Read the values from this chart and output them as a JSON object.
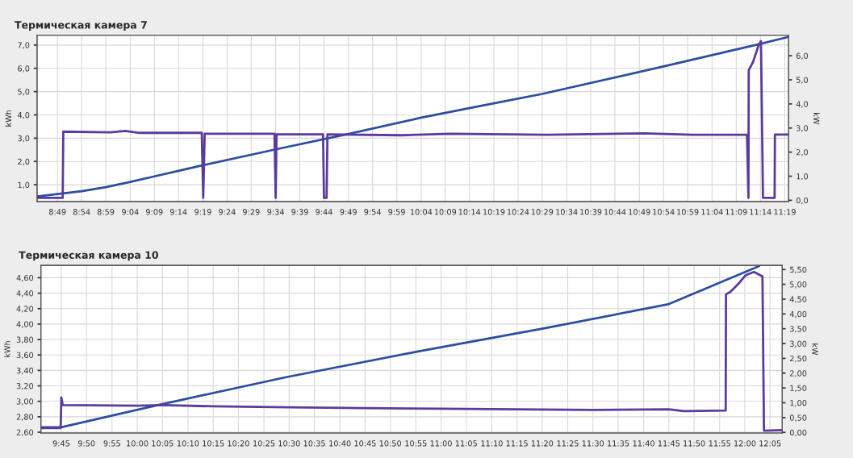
{
  "chart_data": [
    {
      "type": "line",
      "title": "Термическая камера 7",
      "ylabel": "kWh",
      "y2label": "kW",
      "grid": true,
      "legend": false,
      "marker": "none",
      "line_style": "solid",
      "xlim": [
        8.747,
        11.33
      ],
      "xticks": [
        {
          "value": 8.817,
          "label": "8:49"
        },
        {
          "value": 8.9,
          "label": "8:54"
        },
        {
          "value": 8.983,
          "label": "8:59"
        },
        {
          "value": 9.067,
          "label": "9:04"
        },
        {
          "value": 9.15,
          "label": "9:09"
        },
        {
          "value": 9.233,
          "label": "9:14"
        },
        {
          "value": 9.317,
          "label": "9:19"
        },
        {
          "value": 9.4,
          "label": "9:24"
        },
        {
          "value": 9.483,
          "label": "9:29"
        },
        {
          "value": 9.567,
          "label": "9:34"
        },
        {
          "value": 9.65,
          "label": "9:39"
        },
        {
          "value": 9.733,
          "label": "9:44"
        },
        {
          "value": 9.817,
          "label": "9:49"
        },
        {
          "value": 9.9,
          "label": "9:54"
        },
        {
          "value": 9.983,
          "label": "9:59"
        },
        {
          "value": 10.067,
          "label": "10:04"
        },
        {
          "value": 10.15,
          "label": "10:09"
        },
        {
          "value": 10.233,
          "label": "10:14"
        },
        {
          "value": 10.317,
          "label": "10:19"
        },
        {
          "value": 10.4,
          "label": "10:24"
        },
        {
          "value": 10.483,
          "label": "10:29"
        },
        {
          "value": 10.567,
          "label": "10:34"
        },
        {
          "value": 10.65,
          "label": "10:39"
        },
        {
          "value": 10.733,
          "label": "10:44"
        },
        {
          "value": 10.817,
          "label": "10:49"
        },
        {
          "value": 10.9,
          "label": "10:54"
        },
        {
          "value": 10.983,
          "label": "10:59"
        },
        {
          "value": 11.067,
          "label": "11:04"
        },
        {
          "value": 11.15,
          "label": "11:09"
        },
        {
          "value": 11.233,
          "label": "11:14"
        },
        {
          "value": 11.317,
          "label": "11:19"
        }
      ],
      "ylim": [
        0.28,
        7.42
      ],
      "yticks": [
        {
          "value": 1,
          "label": "1,0"
        },
        {
          "value": 2,
          "label": "2,0"
        },
        {
          "value": 3,
          "label": "3,0"
        },
        {
          "value": 4,
          "label": "4,0"
        },
        {
          "value": 5,
          "label": "5,0"
        },
        {
          "value": 6,
          "label": "6,0"
        },
        {
          "value": 7,
          "label": "7,0"
        }
      ],
      "y2lim": [
        -0.05,
        6.85
      ],
      "y2ticks": [
        {
          "value": 0,
          "label": "0,0"
        },
        {
          "value": 1,
          "label": "1,0"
        },
        {
          "value": 2,
          "label": "2,0"
        },
        {
          "value": 3,
          "label": "3,0"
        },
        {
          "value": 4,
          "label": "4,0"
        },
        {
          "value": 5,
          "label": "5,0"
        },
        {
          "value": 6,
          "label": "6,0"
        }
      ],
      "series": [
        {
          "color": "#2b4ea2",
          "x": [
            8.747,
            8.9,
            8.983,
            9.067,
            9.15,
            9.233,
            9.317,
            9.567,
            9.817,
            10.067,
            10.317,
            10.483,
            10.9,
            11.233,
            11.33
          ],
          "values": [
            0.5,
            0.72,
            0.9,
            1.12,
            1.36,
            1.6,
            1.84,
            2.52,
            3.18,
            3.88,
            4.5,
            4.9,
            6.08,
            7.05,
            7.35
          ]
        },
        {
          "color": "#5a3b9b",
          "axis": "y2",
          "x": [
            8.747,
            8.835,
            8.837,
            9.0,
            9.05,
            9.1,
            9.313,
            9.318,
            9.323,
            9.563,
            9.567,
            9.57,
            9.73,
            9.733,
            9.742,
            9.745,
            10.0,
            10.167,
            10.5,
            10.833,
            11.0,
            11.187,
            11.192,
            11.193,
            11.208,
            11.227,
            11.235,
            11.242,
            11.282,
            11.283,
            11.33
          ],
          "values": [
            0.1,
            0.1,
            2.85,
            2.82,
            2.88,
            2.8,
            2.8,
            0.1,
            2.76,
            2.76,
            0.1,
            2.74,
            2.74,
            0.1,
            0.1,
            2.74,
            2.7,
            2.76,
            2.72,
            2.78,
            2.72,
            2.72,
            0.1,
            5.4,
            5.75,
            6.44,
            6.61,
            0.1,
            0.1,
            2.73,
            2.73
          ]
        }
      ]
    },
    {
      "type": "line",
      "title": "Термическая камера 10",
      "ylabel": "kWh",
      "y2label": "kW",
      "grid": true,
      "legend": false,
      "marker": "none",
      "line_style": "solid",
      "xlim": [
        9.683,
        12.123
      ],
      "xticks": [
        {
          "value": 9.75,
          "label": "9:45"
        },
        {
          "value": 9.833,
          "label": "9:50"
        },
        {
          "value": 9.917,
          "label": "9:55"
        },
        {
          "value": 10,
          "label": "10:00"
        },
        {
          "value": 10.083,
          "label": "10:05"
        },
        {
          "value": 10.167,
          "label": "10:10"
        },
        {
          "value": 10.25,
          "label": "10:15"
        },
        {
          "value": 10.333,
          "label": "10:20"
        },
        {
          "value": 10.417,
          "label": "10:25"
        },
        {
          "value": 10.5,
          "label": "10:30"
        },
        {
          "value": 10.583,
          "label": "10:35"
        },
        {
          "value": 10.667,
          "label": "10:40"
        },
        {
          "value": 10.75,
          "label": "10:45"
        },
        {
          "value": 10.833,
          "label": "10:50"
        },
        {
          "value": 10.917,
          "label": "10:55"
        },
        {
          "value": 11,
          "label": "11:00"
        },
        {
          "value": 11.083,
          "label": "11:05"
        },
        {
          "value": 11.167,
          "label": "11:10"
        },
        {
          "value": 11.25,
          "label": "11:15"
        },
        {
          "value": 11.333,
          "label": "11:20"
        },
        {
          "value": 11.417,
          "label": "11:25"
        },
        {
          "value": 11.5,
          "label": "11:30"
        },
        {
          "value": 11.583,
          "label": "11:35"
        },
        {
          "value": 11.667,
          "label": "11:40"
        },
        {
          "value": 11.75,
          "label": "11:45"
        },
        {
          "value": 11.833,
          "label": "11:50"
        },
        {
          "value": 11.917,
          "label": "11:55"
        },
        {
          "value": 12,
          "label": "12:00"
        },
        {
          "value": 12.083,
          "label": "12:05"
        }
      ],
      "ylim": [
        2.59,
        4.76
      ],
      "yticks": [
        {
          "value": 2.6,
          "label": "2,60"
        },
        {
          "value": 2.8,
          "label": "2,80"
        },
        {
          "value": 3.0,
          "label": "3,00"
        },
        {
          "value": 3.2,
          "label": "3,20"
        },
        {
          "value": 3.4,
          "label": "3,40"
        },
        {
          "value": 3.6,
          "label": "3,60"
        },
        {
          "value": 3.8,
          "label": "3,80"
        },
        {
          "value": 4.0,
          "label": "4,00"
        },
        {
          "value": 4.2,
          "label": "4,20"
        },
        {
          "value": 4.4,
          "label": "4,40"
        },
        {
          "value": 4.6,
          "label": "4,60"
        }
      ],
      "y2lim": [
        -0.02,
        5.64
      ],
      "y2ticks": [
        {
          "value": 0,
          "label": "0,00"
        },
        {
          "value": 0.5,
          "label": "0,50"
        },
        {
          "value": 1.0,
          "label": "1,00"
        },
        {
          "value": 1.5,
          "label": "1,50"
        },
        {
          "value": 2.0,
          "label": "2,00"
        },
        {
          "value": 2.5,
          "label": "2,50"
        },
        {
          "value": 3.0,
          "label": "3,00"
        },
        {
          "value": 3.5,
          "label": "3,50"
        },
        {
          "value": 4.0,
          "label": "4,00"
        },
        {
          "value": 4.5,
          "label": "4,50"
        },
        {
          "value": 5.0,
          "label": "5,00"
        },
        {
          "value": 5.5,
          "label": "5,50"
        }
      ],
      "series": [
        {
          "color": "#2b4ea2",
          "x": [
            9.683,
            9.75,
            10.083,
            10.487,
            10.917,
            11.333,
            11.747,
            12.047
          ],
          "values": [
            2.665,
            2.665,
            2.965,
            3.31,
            3.64,
            3.94,
            4.255,
            4.75
          ]
        },
        {
          "color": "#5a3b9b",
          "axis": "y2",
          "x": [
            9.683,
            9.748,
            9.75,
            9.755,
            10.0,
            10.083,
            10.25,
            10.5,
            10.75,
            11.0,
            11.25,
            11.5,
            11.75,
            11.8,
            11.937,
            11.938,
            11.953,
            11.98,
            12.003,
            12.03,
            12.058,
            12.063,
            12.123
          ],
          "values": [
            0.15,
            0.15,
            1.18,
            0.92,
            0.9,
            0.92,
            0.88,
            0.85,
            0.82,
            0.8,
            0.78,
            0.76,
            0.78,
            0.72,
            0.74,
            4.66,
            4.75,
            5.03,
            5.31,
            5.42,
            5.27,
            0.06,
            0.08
          ]
        }
      ]
    }
  ]
}
